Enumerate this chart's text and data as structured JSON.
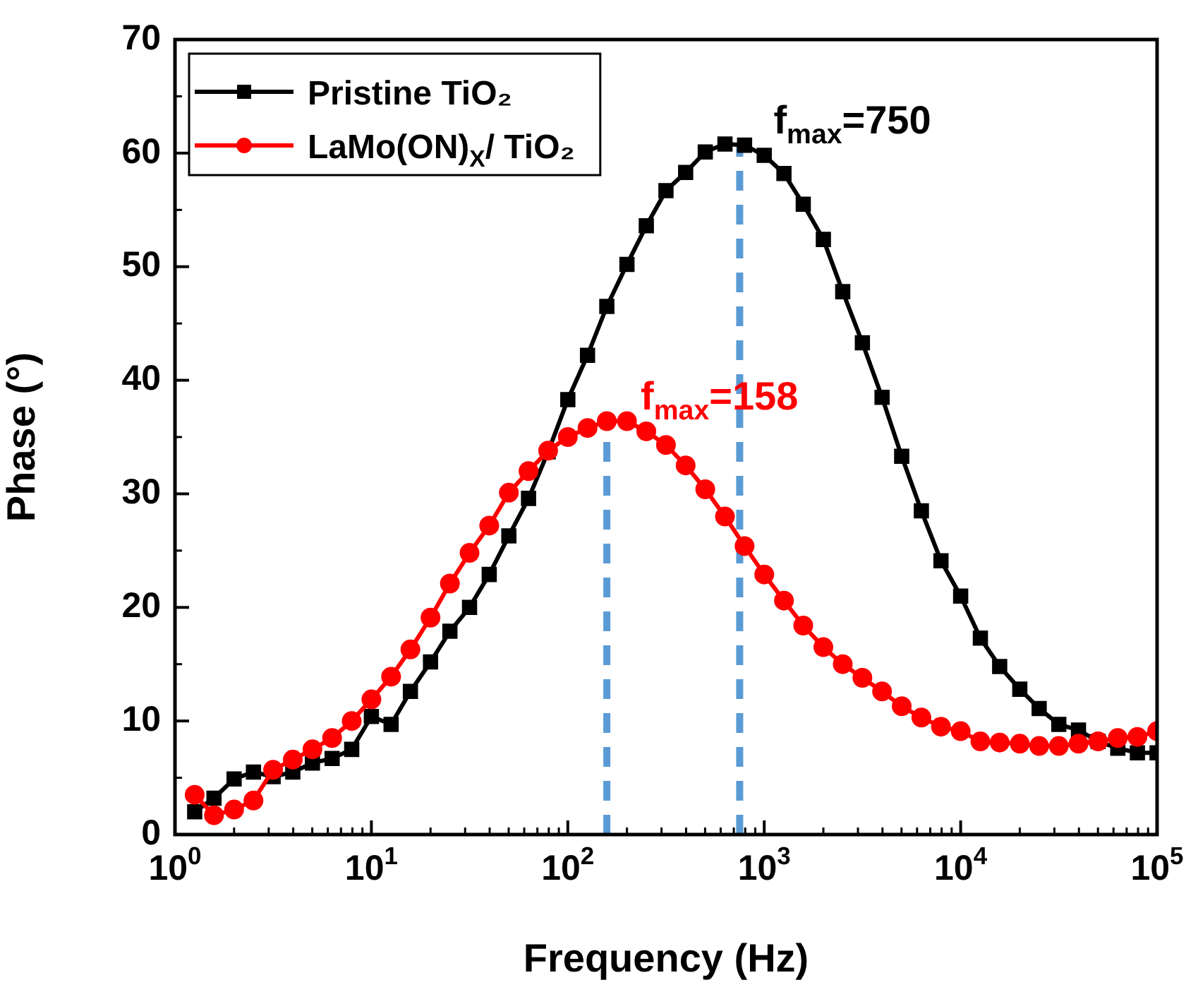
{
  "chart_data": {
    "type": "line",
    "xlabel": "Frequency (Hz)",
    "ylabel": "Phase (°)",
    "x": [
      1.26,
      1.58,
      2.0,
      2.51,
      3.16,
      3.98,
      5.01,
      6.31,
      7.94,
      10,
      12.6,
      15.8,
      20.0,
      25.1,
      31.6,
      39.8,
      50.1,
      63.1,
      79.4,
      100,
      126,
      158,
      200,
      251,
      316,
      398,
      501,
      631,
      794,
      1000,
      1260,
      1580,
      2000,
      2510,
      3160,
      3980,
      5010,
      6310,
      7940,
      10000,
      12600,
      15800,
      20000,
      25100,
      31600,
      39800,
      50100,
      63100,
      79400,
      100000
    ],
    "series": [
      {
        "name": "Pristine TiO₂",
        "color": "#000000",
        "marker": "square",
        "values": [
          2.0,
          3.2,
          4.9,
          5.5,
          5.1,
          5.5,
          6.3,
          6.7,
          7.5,
          10.4,
          9.7,
          12.6,
          15.2,
          17.9,
          20.0,
          22.9,
          26.3,
          29.6,
          33.7,
          38.3,
          42.2,
          46.5,
          50.2,
          53.6,
          56.7,
          58.3,
          60.1,
          60.8,
          60.7,
          59.8,
          58.2,
          55.5,
          52.4,
          47.8,
          43.3,
          38.5,
          33.3,
          28.5,
          24.1,
          21.0,
          17.3,
          14.8,
          12.8,
          11.1,
          9.7,
          9.2,
          8.2,
          7.6,
          7.2,
          7.2
        ]
      },
      {
        "name": "LaMo(ON)$_{X}$/ TiO₂",
        "color": "#ff0000",
        "marker": "circle",
        "values": [
          3.5,
          1.7,
          2.2,
          3.0,
          5.7,
          6.6,
          7.5,
          8.5,
          10.0,
          11.9,
          13.9,
          16.3,
          19.1,
          22.1,
          24.8,
          27.2,
          30.1,
          32.0,
          33.8,
          35.0,
          35.8,
          36.4,
          36.4,
          35.5,
          34.3,
          32.5,
          30.4,
          28.0,
          25.4,
          22.9,
          20.6,
          18.4,
          16.5,
          15.0,
          13.8,
          12.6,
          11.3,
          10.3,
          9.5,
          9.1,
          8.2,
          8.1,
          8.0,
          7.8,
          7.8,
          8.0,
          8.2,
          8.5,
          8.6,
          9.1
        ]
      }
    ],
    "log": "x",
    "xlim": [
      1,
      100000
    ],
    "xticks": [
      {
        "value": 1,
        "label": "10$^{0}$"
      },
      {
        "value": 10,
        "label": "10$^{1}$"
      },
      {
        "value": 100,
        "label": "10$^{2}$"
      },
      {
        "value": 1000,
        "label": "10$^{3}$"
      },
      {
        "value": 10000,
        "label": "10$^{4}$"
      },
      {
        "value": 100000,
        "label": "10$^{5}$"
      }
    ],
    "ylim": [
      0,
      70
    ],
    "yticks": [
      0,
      10,
      20,
      30,
      40,
      50,
      60,
      70
    ],
    "ref_lines": [
      {
        "axis": "x",
        "value": 750,
        "label": "f$_{max}$=750",
        "color": "#5b9bd5",
        "line_style": "dashed"
      },
      {
        "axis": "x",
        "value": 158,
        "label": "f$_{max}$=158",
        "color": "#5b9bd5",
        "line_style": "dashed"
      }
    ],
    "grid": false,
    "legend": "top left",
    "line_style": "solid"
  }
}
